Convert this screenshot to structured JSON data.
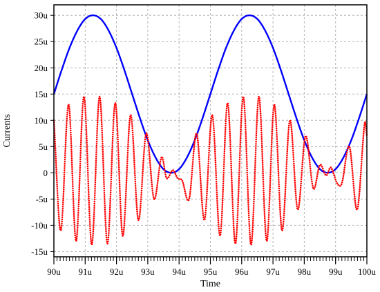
{
  "chart_data": {
    "type": "line",
    "title": "",
    "xlabel": "Time",
    "ylabel": "Currents",
    "xlim": [
      90,
      100
    ],
    "ylim": [
      -16,
      32
    ],
    "x_ticks": [
      {
        "value": 90,
        "label": "90u"
      },
      {
        "value": 91,
        "label": "91u"
      },
      {
        "value": 92,
        "label": "92u"
      },
      {
        "value": 93,
        "label": "93u"
      },
      {
        "value": 94,
        "label": "94u"
      },
      {
        "value": 95,
        "label": "95u"
      },
      {
        "value": 96,
        "label": "96u"
      },
      {
        "value": 97,
        "label": "97u"
      },
      {
        "value": 98,
        "label": "98u"
      },
      {
        "value": 99,
        "label": "99u"
      },
      {
        "value": 100,
        "label": "100u"
      }
    ],
    "y_ticks": [
      {
        "value": 30,
        "label": "30u"
      },
      {
        "value": 25,
        "label": "25u"
      },
      {
        "value": 20,
        "label": "20u"
      },
      {
        "value": 15,
        "label": "15u"
      },
      {
        "value": 10,
        "label": "10u"
      },
      {
        "value": 5,
        "label": "5u"
      },
      {
        "value": 0,
        "label": "0"
      },
      {
        "value": -5,
        "label": "-5u"
      },
      {
        "value": -10,
        "label": "-10u"
      },
      {
        "value": -15,
        "label": "-15u"
      }
    ],
    "grid": true,
    "legend": "none",
    "series": [
      {
        "color": "#0000ff",
        "style": "solid",
        "x": [
          90.0,
          90.25,
          90.5,
          90.75,
          91.0,
          91.25,
          91.5,
          91.75,
          92.0,
          92.25,
          92.5,
          92.75,
          93.0,
          93.25,
          93.5,
          93.75,
          94.0,
          94.25,
          94.5,
          94.75,
          95.0,
          95.25,
          95.5,
          95.75,
          96.0,
          96.25,
          96.5,
          96.75,
          97.0,
          97.25,
          97.5,
          97.75,
          98.0,
          98.25,
          98.5,
          98.75,
          99.0,
          99.25,
          99.5,
          99.75,
          100.0
        ],
        "y": [
          15.0,
          19.6,
          23.8,
          27.1,
          29.3,
          30.0,
          29.3,
          27.1,
          23.8,
          19.6,
          15.0,
          10.4,
          6.2,
          2.9,
          0.7,
          0.0,
          0.7,
          2.9,
          6.2,
          10.4,
          15.0,
          19.6,
          23.8,
          27.1,
          29.3,
          30.0,
          29.3,
          27.1,
          23.8,
          19.6,
          15.0,
          10.4,
          6.2,
          2.9,
          0.7,
          0.0,
          0.7,
          2.9,
          6.2,
          10.4,
          15.0
        ]
      },
      {
        "color": "#ff0000",
        "style": "dotted",
        "x": [
          90.0,
          90.22,
          90.47,
          90.71,
          90.96,
          91.21,
          91.46,
          91.71,
          91.96,
          92.2,
          92.45,
          92.7,
          92.95,
          93.2,
          93.44,
          93.6,
          93.8,
          93.95,
          94.1,
          94.32,
          94.56,
          94.81,
          95.06,
          95.31,
          95.55,
          95.8,
          96.05,
          96.3,
          96.55,
          96.8,
          97.04,
          97.29,
          97.54,
          97.79,
          98.04,
          98.29,
          98.5,
          98.7,
          98.85,
          99.05,
          99.2,
          99.44,
          99.69,
          99.93,
          100.0
        ],
        "y": [
          10.0,
          -11.0,
          13.0,
          -13.0,
          14.5,
          -13.7,
          14.5,
          -13.5,
          13.3,
          -12.0,
          11.0,
          -9.0,
          7.5,
          -5.0,
          3.0,
          -1.0,
          0.5,
          -1.0,
          -1.5,
          -5.0,
          7.5,
          -9.0,
          11.0,
          -12.0,
          13.3,
          -13.5,
          14.5,
          -13.7,
          14.5,
          -13.0,
          13.0,
          -11.0,
          10.0,
          -7.0,
          7.0,
          -3.0,
          1.5,
          -0.5,
          1.0,
          -2.0,
          -2.0,
          5.0,
          -7.0,
          9.5,
          7.0
        ]
      }
    ]
  }
}
